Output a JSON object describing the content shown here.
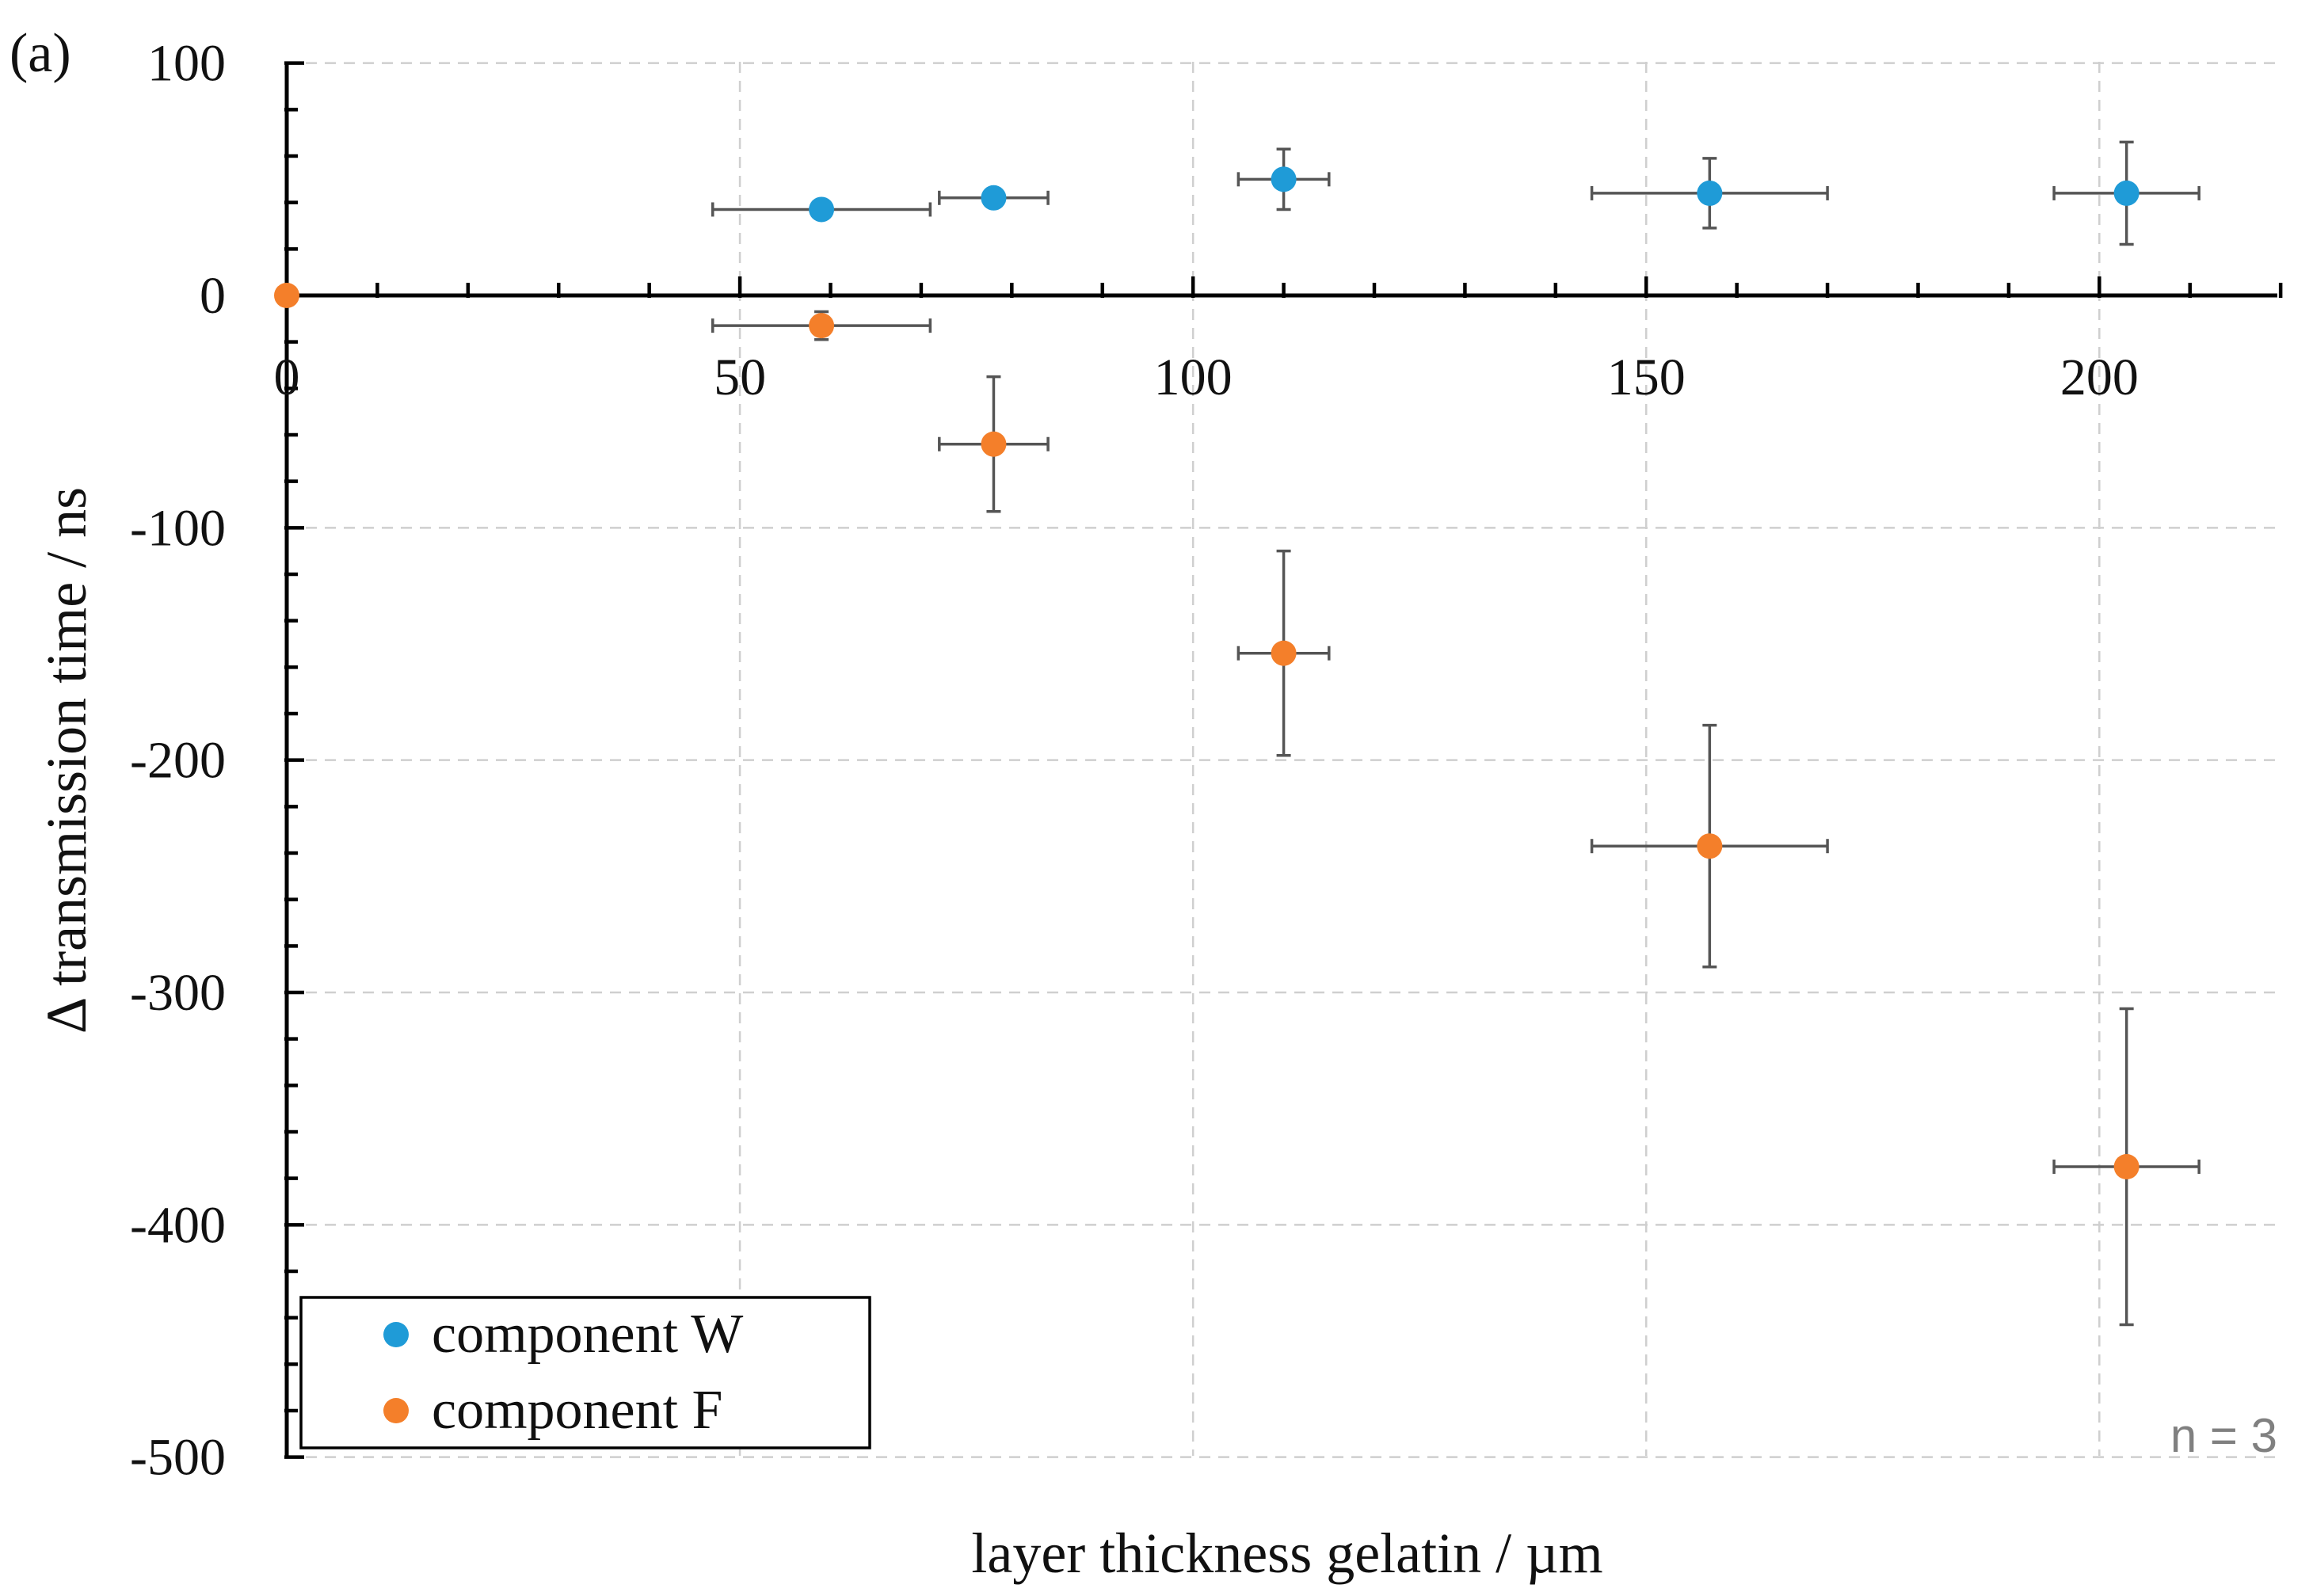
{
  "panel_label": "(a)",
  "annotation": "n = 3",
  "colors": {
    "W": "#1f9bd7",
    "F": "#f47f2a"
  },
  "chart_data": {
    "type": "scatter",
    "title": "",
    "xlabel": "layer thickness gelatin / µm",
    "ylabel": "Δ transmission time / ns",
    "xlim": [
      0,
      225
    ],
    "ylim": [
      -500,
      100
    ],
    "x_ticks": [
      0,
      50,
      100,
      150,
      200
    ],
    "y_ticks": [
      100,
      0,
      -100,
      -200,
      -300,
      -400,
      -500
    ],
    "grid": true,
    "legend_position": "bottom-left",
    "series": [
      {
        "name": "component W",
        "color": "#1f9bd7",
        "points": [
          {
            "x": 59,
            "y": 37,
            "xerr": 12,
            "yerr": 0
          },
          {
            "x": 78,
            "y": 42,
            "xerr": 6,
            "yerr": 0
          },
          {
            "x": 110,
            "y": 50,
            "xerr": 5,
            "yerr": 13
          },
          {
            "x": 157,
            "y": 44,
            "xerr": 13,
            "yerr": 15
          },
          {
            "x": 203,
            "y": 44,
            "xerr": 8,
            "yerr": 22
          }
        ]
      },
      {
        "name": "component F",
        "color": "#f47f2a",
        "points": [
          {
            "x": 0,
            "y": 0,
            "xerr": 0,
            "yerr": 0
          },
          {
            "x": 59,
            "y": -13,
            "xerr": 12,
            "yerr": 6
          },
          {
            "x": 78,
            "y": -64,
            "xerr": 6,
            "yerr": 29
          },
          {
            "x": 110,
            "y": -154,
            "xerr": 5,
            "yerr": 44
          },
          {
            "x": 157,
            "y": -237,
            "xerr": 13,
            "yerr": 52
          },
          {
            "x": 203,
            "y": -375,
            "xerr": 8,
            "yerr": 68
          }
        ]
      }
    ]
  }
}
